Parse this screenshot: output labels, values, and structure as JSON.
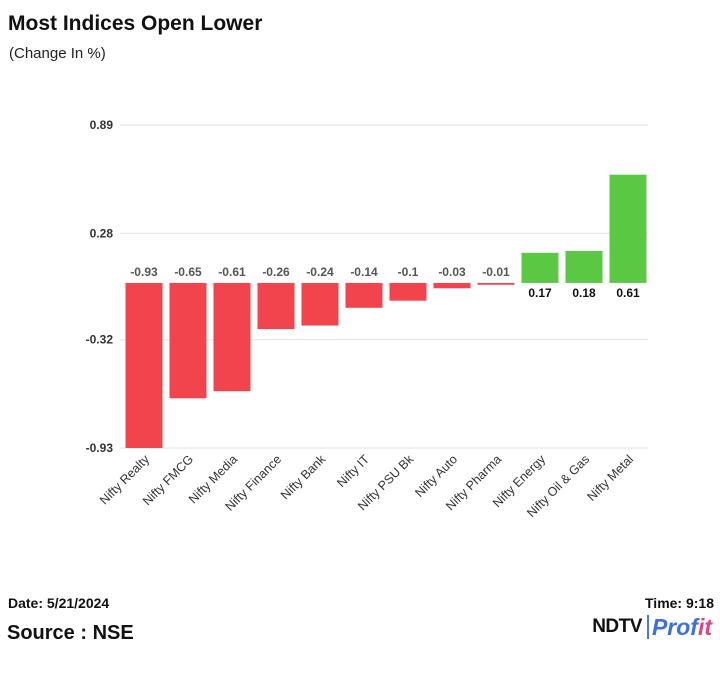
{
  "header": {
    "title": "Most Indices Open Lower",
    "subtitle": "(Change In %)"
  },
  "footer": {
    "date": "Date: 5/21/2024",
    "source": "Source : NSE",
    "time": "Time: 9:18",
    "logo_left": "NDTV",
    "logo_right_main": "Prof",
    "logo_right_accent": "it"
  },
  "colors": {
    "negative": "#f2444d",
    "positive": "#5bc844",
    "grid": "#e2e2e2"
  },
  "chart_data": {
    "type": "bar",
    "title": "Most Indices Open Lower",
    "subtitle": "(Change In %)",
    "xlabel": "",
    "ylabel": "",
    "categories": [
      "Nifty Realty",
      "Nifty FMCG",
      "Nifty Media",
      "Nifty Finance",
      "Nifty Bank",
      "Nifty IT",
      "Nifty PSU Bk",
      "Nifty Auto",
      "Nifty Pharma",
      "Nifty Energy",
      "Nifty Oil & Gas",
      "Nifty Metal"
    ],
    "values": [
      -0.93,
      -0.65,
      -0.61,
      -0.26,
      -0.24,
      -0.14,
      -0.1,
      -0.03,
      -0.01,
      0.17,
      0.18,
      0.61
    ],
    "value_labels": [
      "-0.93",
      "-0.65",
      "-0.61",
      "-0.26",
      "-0.24",
      "-0.14",
      "-0.1",
      "-0.03",
      "-0.01",
      "0.17",
      "0.18",
      "0.61"
    ],
    "yticks": [
      0.89,
      0.28,
      -0.32,
      -0.93
    ],
    "ytick_labels": [
      "0.89",
      "0.28",
      "-0.32",
      "-0.93"
    ],
    "ylim": [
      -0.93,
      0.89
    ],
    "grid": true,
    "legend": "none"
  }
}
